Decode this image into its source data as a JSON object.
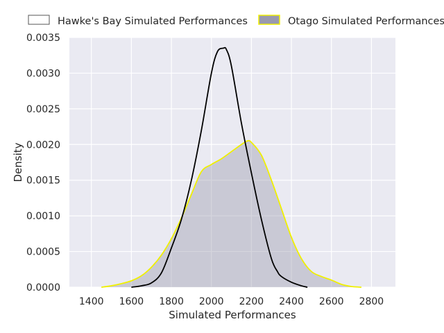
{
  "chart_data": {
    "type": "area",
    "title": "",
    "xlabel": "Simulated Performances",
    "ylabel": "Density",
    "xlim": [
      1290,
      2920
    ],
    "ylim": [
      0,
      0.0035
    ],
    "x_ticks": [
      1400,
      1600,
      1800,
      2000,
      2200,
      2400,
      2600,
      2800
    ],
    "y_ticks": [
      0.0,
      0.0005,
      0.001,
      0.0015,
      0.002,
      0.0025,
      0.003,
      0.0035
    ],
    "x_tick_labels": [
      "1400",
      "1600",
      "1800",
      "2000",
      "2200",
      "2400",
      "2600",
      "2800"
    ],
    "y_tick_labels": [
      "0.0000",
      "0.0005",
      "0.0010",
      "0.0015",
      "0.0020",
      "0.0025",
      "0.0030",
      "0.0035"
    ],
    "grid": true,
    "legend_position": "top",
    "series": [
      {
        "name": "Hawke's Bay Simulated Performances",
        "fill": "none",
        "line_color": "#000000",
        "x": [
          1600,
          1650,
          1700,
          1750,
          1800,
          1850,
          1900,
          1950,
          2000,
          2030,
          2060,
          2075,
          2100,
          2150,
          2200,
          2250,
          2300,
          2330,
          2350,
          2400,
          2450,
          2480
        ],
        "y": [
          0.0,
          2e-05,
          6e-05,
          0.0002,
          0.00055,
          0.00095,
          0.0015,
          0.0022,
          0.003,
          0.0033,
          0.00335,
          0.00333,
          0.0031,
          0.0023,
          0.0016,
          0.00095,
          0.0004,
          0.00022,
          0.00015,
          7e-05,
          2e-05,
          0.0
        ]
      },
      {
        "name": "Otago Simulated Performances",
        "fill": "#9a9aae",
        "line_color": "#f0f000",
        "x": [
          1450,
          1500,
          1550,
          1600,
          1650,
          1700,
          1750,
          1800,
          1850,
          1900,
          1950,
          2000,
          2050,
          2100,
          2150,
          2180,
          2200,
          2250,
          2300,
          2350,
          2400,
          2450,
          2500,
          2550,
          2600,
          2650,
          2700,
          2750
        ],
        "y": [
          0.0,
          2e-05,
          5e-05,
          9e-05,
          0.00016,
          0.00028,
          0.00045,
          0.00068,
          0.00097,
          0.0013,
          0.00162,
          0.00172,
          0.0018,
          0.0019,
          0.002,
          0.00205,
          0.00203,
          0.00185,
          0.0015,
          0.0011,
          0.0007,
          0.0004,
          0.00022,
          0.00015,
          0.0001,
          4e-05,
          1e-05,
          0.0
        ]
      }
    ]
  }
}
